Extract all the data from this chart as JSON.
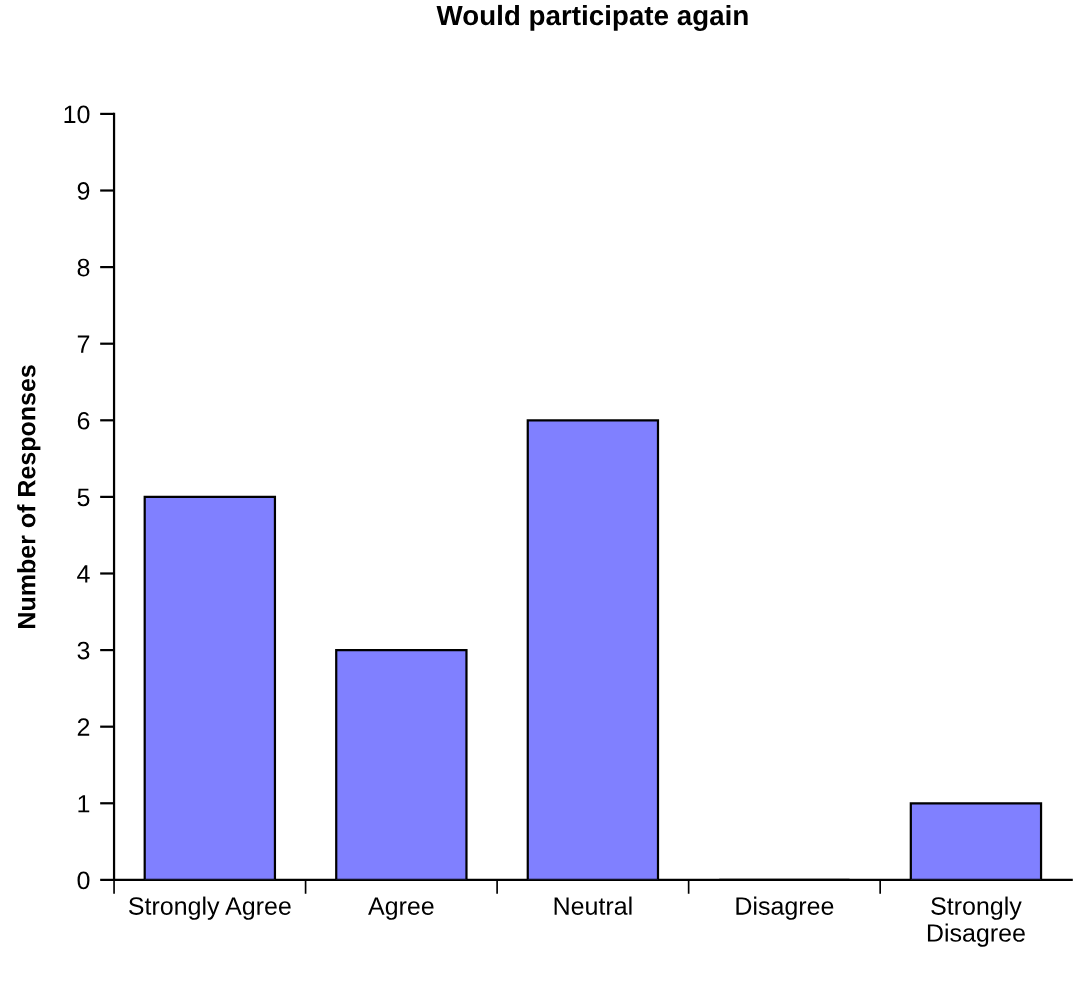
{
  "chart_data": {
    "type": "bar",
    "title": "Would participate again",
    "ylabel": "Number of Responses",
    "categories": [
      "Strongly Agree",
      "Agree",
      "Neutral",
      "Disagree",
      "Strongly Disagree"
    ],
    "values": [
      5,
      3,
      6,
      0,
      1
    ],
    "color": "#8080ff",
    "ylim": [
      0,
      10
    ],
    "yticks": [
      0,
      1,
      2,
      3,
      4,
      5,
      6,
      7,
      8,
      9,
      10
    ],
    "grid": false,
    "legend": false
  }
}
